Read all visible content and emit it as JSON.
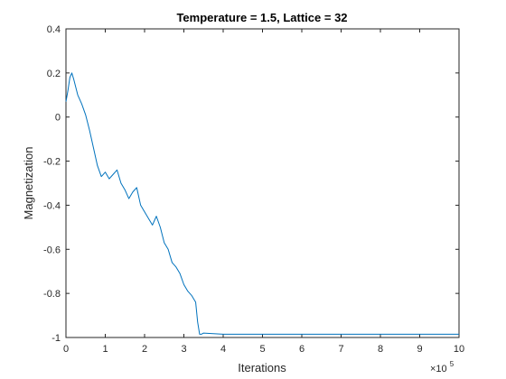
{
  "chart_data": {
    "type": "line",
    "title": "Temperature = 1.5, Lattice = 32",
    "xlabel": "Iterations",
    "ylabel": "Magnetization",
    "x_multiplier_base": "×10",
    "x_multiplier_exponent": "5",
    "xlim": [
      0,
      10
    ],
    "ylim": [
      -1,
      0.4
    ],
    "x_ticks": [
      0,
      1,
      2,
      3,
      4,
      5,
      6,
      7,
      8,
      9,
      10
    ],
    "x_tick_labels": [
      "0",
      "1",
      "2",
      "3",
      "4",
      "5",
      "6",
      "7",
      "8",
      "9",
      "10"
    ],
    "y_ticks": [
      0.4,
      0.2,
      0,
      -0.2,
      -0.4,
      -0.6,
      -0.8,
      -1
    ],
    "y_tick_labels": [
      "0.4",
      "0.2",
      "0",
      "-0.2",
      "-0.4",
      "-0.6",
      "-0.8",
      "-1"
    ],
    "grid": false,
    "series": [
      {
        "color": "#0072BD",
        "x": [
          0,
          0.05,
          0.1,
          0.15,
          0.2,
          0.3,
          0.4,
          0.5,
          0.6,
          0.7,
          0.8,
          0.9,
          1.0,
          1.1,
          1.2,
          1.3,
          1.4,
          1.5,
          1.6,
          1.7,
          1.8,
          1.9,
          2.0,
          2.1,
          2.2,
          2.3,
          2.4,
          2.5,
          2.6,
          2.7,
          2.8,
          2.9,
          3.0,
          3.1,
          3.2,
          3.3,
          3.35,
          3.4,
          3.45,
          3.5,
          4,
          5,
          6,
          7,
          8,
          9,
          10
        ],
        "y": [
          0.07,
          0.12,
          0.18,
          0.2,
          0.17,
          0.1,
          0.06,
          0.01,
          -0.06,
          -0.14,
          -0.22,
          -0.27,
          -0.25,
          -0.28,
          -0.26,
          -0.24,
          -0.3,
          -0.33,
          -0.37,
          -0.34,
          -0.32,
          -0.4,
          -0.43,
          -0.46,
          -0.49,
          -0.45,
          -0.5,
          -0.57,
          -0.6,
          -0.66,
          -0.68,
          -0.71,
          -0.76,
          -0.79,
          -0.81,
          -0.84,
          -0.93,
          -0.985,
          -0.985,
          -0.98,
          -0.985,
          -0.985,
          -0.985,
          -0.985,
          -0.985,
          -0.985,
          -0.985
        ]
      }
    ]
  }
}
